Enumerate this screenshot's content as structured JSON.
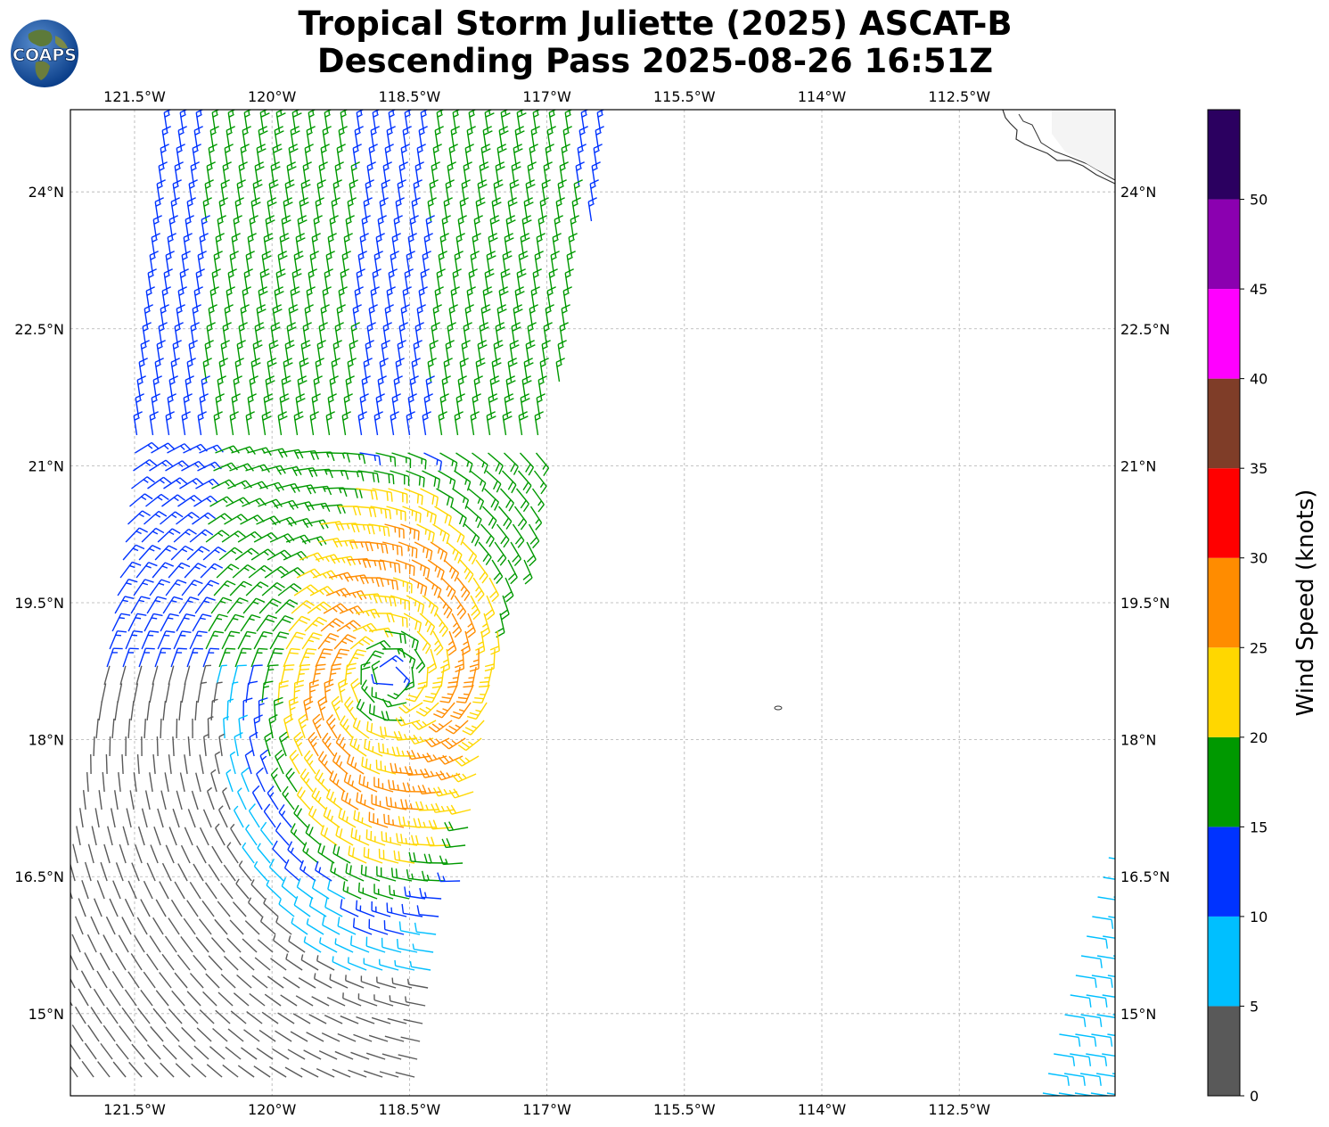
{
  "title": {
    "line1": "Tropical Storm Juliette (2025) ASCAT-B",
    "line2": "Descending Pass 2025-08-26 16:51Z"
  },
  "logo": {
    "text": "COAPS"
  },
  "map": {
    "lon_range": [
      -122.2,
      -110.8
    ],
    "lat_range": [
      14.1,
      24.9
    ],
    "lon_ticks": [
      "121.5°W",
      "120°W",
      "118.5°W",
      "117°W",
      "115.5°W",
      "114°W",
      "112.5°W"
    ],
    "lon_tick_values": [
      -121.5,
      -120,
      -118.5,
      -117,
      -115.5,
      -114,
      -112.5
    ],
    "lat_ticks": [
      "24°N",
      "22.5°N",
      "21°N",
      "19.5°N",
      "18°N",
      "16.5°N",
      "15°N"
    ],
    "lat_tick_values": [
      24,
      22.5,
      21,
      19.5,
      18,
      16.5,
      15
    ],
    "gridlines": "dashed gray",
    "storm_center_approx": {
      "lon": -118.7,
      "lat": 18.7
    }
  },
  "colorbar": {
    "label": "Wind Speed (knots)",
    "tick_labels": [
      "0",
      "5",
      "10",
      "15",
      "20",
      "25",
      "30",
      "35",
      "40",
      "45",
      "50"
    ],
    "bins": [
      {
        "min": 0,
        "max": 5,
        "color": "#595959"
      },
      {
        "min": 5,
        "max": 10,
        "color": "#00bfff"
      },
      {
        "min": 10,
        "max": 15,
        "color": "#0033ff"
      },
      {
        "min": 15,
        "max": 20,
        "color": "#009900"
      },
      {
        "min": 20,
        "max": 25,
        "color": "#ffd700"
      },
      {
        "min": 25,
        "max": 30,
        "color": "#ff8c00"
      },
      {
        "min": 30,
        "max": 35,
        "color": "#ff0000"
      },
      {
        "min": 35,
        "max": 40,
        "color": "#7f3d28"
      },
      {
        "min": 40,
        "max": 45,
        "color": "#ff00ff"
      },
      {
        "min": 45,
        "max": 50,
        "color": "#8b00b0"
      },
      {
        "min": 50,
        "max": 55,
        "color": "#2b0060"
      }
    ]
  }
}
